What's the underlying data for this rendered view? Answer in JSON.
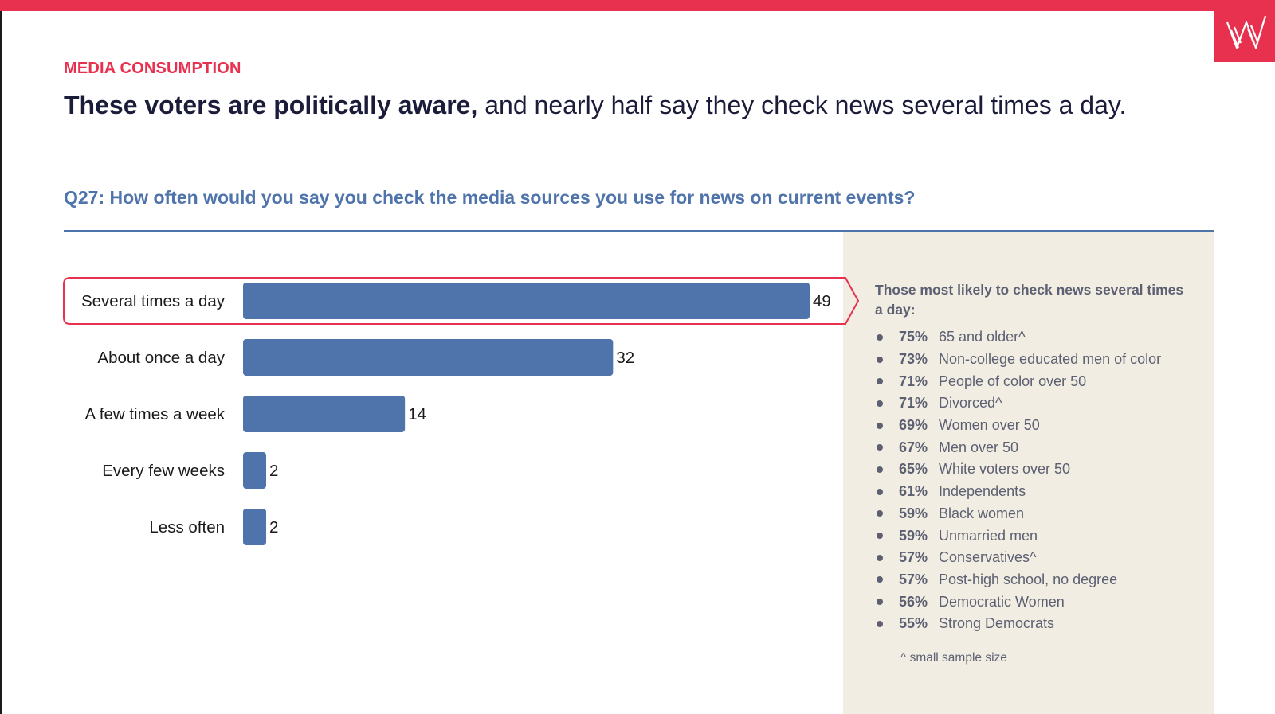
{
  "header": {
    "section_label": "MEDIA CONSUMPTION",
    "headline_bold": "These voters are politically aware,",
    "headline_rest": " and nearly half say they check news several times a day.",
    "question": "Q27: How often would you say you check the media sources you use for news on current events?"
  },
  "colors": {
    "accent": "#e8304f",
    "bar": "#4f73ab",
    "navy": "#1a1c3a",
    "panel_bg": "#f2ede2"
  },
  "chart_data": {
    "type": "bar",
    "orientation": "horizontal",
    "categories": [
      "Several times a day",
      "About once a day",
      "A few times a week",
      "Every few weeks",
      "Less often"
    ],
    "values": [
      49,
      32,
      14,
      2,
      2
    ],
    "highlighted_category": "Several times a day",
    "xlim": [
      0,
      50
    ],
    "title": "",
    "xlabel": "",
    "ylabel": ""
  },
  "side_panel": {
    "title": "Those most likely to check news several times a day:",
    "items": [
      {
        "pct": "75%",
        "label": "65 and older^"
      },
      {
        "pct": "73%",
        "label": "Non-college educated men of color"
      },
      {
        "pct": "71%",
        "label": "People of color over 50"
      },
      {
        "pct": "71%",
        "label": "Divorced^"
      },
      {
        "pct": "69%",
        "label": "Women over 50"
      },
      {
        "pct": "67%",
        "label": "Men over 50"
      },
      {
        "pct": "65%",
        "label": "White voters over 50"
      },
      {
        "pct": "61%",
        "label": "Independents"
      },
      {
        "pct": "59%",
        "label": "Black women"
      },
      {
        "pct": "59%",
        "label": "Unmarried men"
      },
      {
        "pct": "57%",
        "label": "Conservatives^"
      },
      {
        "pct": "57%",
        "label": "Post-high school, no degree"
      },
      {
        "pct": "56%",
        "label": "Democratic Women"
      },
      {
        "pct": "55%",
        "label": "Strong Democrats"
      }
    ],
    "footnote": "^ small sample size"
  }
}
